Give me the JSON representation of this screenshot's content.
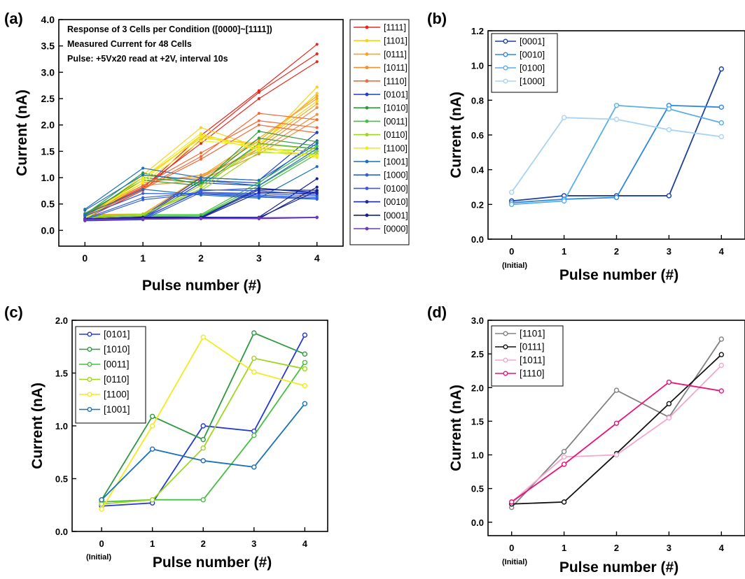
{
  "chart_data": [
    {
      "panel": "(a)",
      "type": "line",
      "xlabel": "Pulse number (#)",
      "ylabel": "Current (nA)",
      "x": [
        0,
        1,
        2,
        3,
        4
      ],
      "xticks": [
        "0",
        "1",
        "2",
        "3",
        "4"
      ],
      "ylim": [
        -0.3,
        4.0
      ],
      "yticks": [
        "0.0",
        "0.5",
        "1.0",
        "1.5",
        "2.0",
        "2.5",
        "3.0",
        "3.5",
        "4.0"
      ],
      "annotations": [
        "Response of 3 Cells per Condition ([0000]~[1111])",
        "Measured Current for 48 Cells",
        "Pulse: +5Vx20 read at +2V, interval 10s"
      ],
      "legend_position": "right, outside plot",
      "series": [
        {
          "name": "[1111]",
          "color": "#e8281e",
          "curves": [
            [
              0.25,
              0.8,
              1.8,
              2.65,
              3.53
            ],
            [
              0.22,
              0.76,
              1.72,
              2.62,
              3.35
            ],
            [
              0.28,
              0.82,
              1.65,
              2.5,
              3.2
            ]
          ]
        },
        {
          "name": "[1101]",
          "color": "#f5d21e",
          "curves": [
            [
              0.22,
              1.05,
              1.95,
              1.58,
              2.72
            ],
            [
              0.25,
              0.95,
              1.8,
              1.6,
              2.6
            ],
            [
              0.27,
              1.0,
              1.75,
              1.65,
              2.45
            ]
          ]
        },
        {
          "name": "[0111]",
          "color": "#f5a623",
          "curves": [
            [
              0.27,
              0.3,
              1.02,
              1.75,
              2.5
            ],
            [
              0.24,
              0.28,
              0.95,
              1.6,
              2.4
            ],
            [
              0.3,
              0.31,
              1.0,
              1.7,
              2.55
            ]
          ]
        },
        {
          "name": "[1011]",
          "color": "#f09030",
          "curves": [
            [
              0.3,
              0.95,
              1.0,
              1.55,
              2.33
            ],
            [
              0.26,
              0.9,
              1.05,
              1.5,
              2.2
            ],
            [
              0.28,
              0.85,
              0.95,
              1.45,
              2.1
            ]
          ]
        },
        {
          "name": "[1110]",
          "color": "#f26a3a",
          "curves": [
            [
              0.3,
              0.85,
              1.47,
              2.08,
              1.95
            ],
            [
              0.27,
              0.8,
              1.4,
              2.22,
              2.1
            ],
            [
              0.25,
              0.78,
              1.35,
              2.0,
              1.85
            ]
          ]
        },
        {
          "name": "[0101]",
          "color": "#1f3fc8",
          "curves": [
            [
              0.24,
              0.27,
              1.0,
              0.95,
              1.86
            ],
            [
              0.22,
              0.25,
              0.95,
              0.9,
              1.7
            ],
            [
              0.2,
              0.23,
              0.9,
              0.85,
              1.5
            ]
          ]
        },
        {
          "name": "[1010]",
          "color": "#2e9a3e",
          "curves": [
            [
              0.3,
              1.09,
              0.87,
              1.88,
              1.68
            ],
            [
              0.28,
              1.0,
              0.9,
              1.75,
              1.6
            ],
            [
              0.32,
              0.95,
              0.85,
              1.65,
              1.55
            ]
          ]
        },
        {
          "name": "[0011]",
          "color": "#45c040",
          "curves": [
            [
              0.28,
              0.3,
              0.3,
              0.91,
              1.6
            ],
            [
              0.25,
              0.28,
              0.28,
              0.85,
              1.5
            ],
            [
              0.27,
              0.26,
              0.27,
              0.8,
              1.45
            ]
          ]
        },
        {
          "name": "[0110]",
          "color": "#9ed61e",
          "curves": [
            [
              0.26,
              0.3,
              0.79,
              1.64,
              1.54
            ],
            [
              0.24,
              0.28,
              0.85,
              1.55,
              1.5
            ],
            [
              0.27,
              0.31,
              0.75,
              1.48,
              1.45
            ]
          ]
        },
        {
          "name": "[1100]",
          "color": "#f0ec1e",
          "curves": [
            [
              0.21,
              1.0,
              1.84,
              1.51,
              1.38
            ],
            [
              0.23,
              0.95,
              1.78,
              1.55,
              1.42
            ],
            [
              0.22,
              0.9,
              1.7,
              1.6,
              1.4
            ]
          ]
        },
        {
          "name": "[1001]",
          "color": "#1c70b8",
          "curves": [
            [
              0.3,
              0.78,
              0.67,
              0.61,
              1.21
            ],
            [
              0.4,
              1.18,
              1.0,
              0.95,
              1.65
            ],
            [
              0.38,
              1.05,
              0.95,
              0.85,
              1.55
            ]
          ]
        },
        {
          "name": "[1000]",
          "color": "#3060d8",
          "curves": [
            [
              0.27,
              0.7,
              0.69,
              0.63,
              0.59
            ],
            [
              0.22,
              0.62,
              0.72,
              0.67,
              0.62
            ],
            [
              0.2,
              0.58,
              0.7,
              0.65,
              0.6
            ]
          ]
        },
        {
          "name": "[0100]",
          "color": "#3a5ae0",
          "curves": [
            [
              0.2,
              0.22,
              0.77,
              0.75,
              0.67
            ],
            [
              0.18,
              0.2,
              0.72,
              0.7,
              0.65
            ],
            [
              0.22,
              0.24,
              0.75,
              0.8,
              0.7
            ]
          ]
        },
        {
          "name": "[0010]",
          "color": "#1a2aa0",
          "curves": [
            [
              0.21,
              0.23,
              0.24,
              0.77,
              0.76
            ],
            [
              0.19,
              0.21,
              0.23,
              0.72,
              0.7
            ],
            [
              0.22,
              0.25,
              0.25,
              0.8,
              0.72
            ]
          ]
        },
        {
          "name": "[0001]",
          "color": "#141e90",
          "curves": [
            [
              0.22,
              0.25,
              0.25,
              0.25,
              0.98
            ],
            [
              0.2,
              0.23,
              0.24,
              0.22,
              0.82
            ],
            [
              0.21,
              0.24,
              0.23,
              0.24,
              0.75
            ]
          ]
        },
        {
          "name": "[0000]",
          "color": "#6a3ab8",
          "curves": [
            [
              0.2,
              0.22,
              0.23,
              0.24,
              0.25
            ],
            [
              0.19,
              0.21,
              0.22,
              0.22,
              0.24
            ],
            [
              0.21,
              0.22,
              0.22,
              0.23,
              0.25
            ]
          ]
        }
      ]
    },
    {
      "panel": "(b)",
      "type": "line",
      "xlabel": "Pulse number (#)",
      "ylabel": "Current (nA)",
      "x": [
        0,
        1,
        2,
        3,
        4
      ],
      "xticks": [
        "0",
        "1",
        "2",
        "3",
        "4"
      ],
      "xtick_note": "(Initial)",
      "ylim": [
        0.0,
        1.2
      ],
      "yticks": [
        "0.0",
        "0.2",
        "0.4",
        "0.6",
        "0.8",
        "1.0",
        "1.2"
      ],
      "legend_position": "top-left",
      "series": [
        {
          "name": "[0001]",
          "color": "#1a3f9e",
          "values": [
            0.22,
            0.25,
            0.25,
            0.25,
            0.98
          ]
        },
        {
          "name": "[0010]",
          "color": "#2e86e0",
          "values": [
            0.21,
            0.23,
            0.24,
            0.77,
            0.76
          ]
        },
        {
          "name": "[0100]",
          "color": "#5aaeea",
          "values": [
            0.2,
            0.22,
            0.77,
            0.75,
            0.67
          ]
        },
        {
          "name": "[1000]",
          "color": "#a9d3f2",
          "values": [
            0.27,
            0.7,
            0.69,
            0.63,
            0.59
          ]
        }
      ]
    },
    {
      "panel": "(c)",
      "type": "line",
      "xlabel": "Pulse number (#)",
      "ylabel": "Current (nA)",
      "x": [
        0,
        1,
        2,
        3,
        4
      ],
      "xticks": [
        "0",
        "1",
        "2",
        "3",
        "4"
      ],
      "xtick_note": "(Initial)",
      "ylim": [
        0.0,
        2.0
      ],
      "yticks": [
        "0.0",
        "0.5",
        "1.0",
        "1.5",
        "2.0"
      ],
      "legend_position": "top-left",
      "series": [
        {
          "name": "[0101]",
          "color": "#2438d8",
          "values": [
            0.24,
            0.27,
            1.0,
            0.95,
            1.86
          ]
        },
        {
          "name": "[1010]",
          "color": "#2e9a3e",
          "values": [
            0.3,
            1.09,
            0.87,
            1.88,
            1.68
          ]
        },
        {
          "name": "[0011]",
          "color": "#45c040",
          "values": [
            0.28,
            0.3,
            0.3,
            0.91,
            1.6
          ]
        },
        {
          "name": "[0110]",
          "color": "#9ed61e",
          "values": [
            0.26,
            0.3,
            0.79,
            1.64,
            1.54
          ]
        },
        {
          "name": "[1100]",
          "color": "#f0ec1e",
          "values": [
            0.21,
            1.0,
            1.84,
            1.51,
            1.38
          ]
        },
        {
          "name": "[1001]",
          "color": "#1c70b8",
          "values": [
            0.3,
            0.78,
            0.67,
            0.61,
            1.21
          ]
        }
      ]
    },
    {
      "panel": "(d)",
      "type": "line",
      "xlabel": "Pulse number (#)",
      "ylabel": "Current (nA)",
      "x": [
        0,
        1,
        2,
        3,
        4
      ],
      "xticks": [
        "0",
        "1",
        "2",
        "3",
        "4"
      ],
      "xtick_note": "(Initial)",
      "ylim": [
        -0.2,
        3.0
      ],
      "yticks": [
        "0.0",
        "0.5",
        "1.0",
        "1.5",
        "2.0",
        "2.5",
        "3.0"
      ],
      "legend_position": "top-left",
      "series": [
        {
          "name": "[1101]",
          "color": "#808080",
          "values": [
            0.22,
            1.05,
            1.96,
            1.56,
            2.72
          ]
        },
        {
          "name": "[0111]",
          "color": "#111111",
          "values": [
            0.27,
            0.3,
            1.02,
            1.76,
            2.49
          ]
        },
        {
          "name": "[1011]",
          "color": "#f4a6cf",
          "values": [
            0.3,
            0.97,
            1.0,
            1.55,
            2.33
          ]
        },
        {
          "name": "[1110]",
          "color": "#e8127a",
          "values": [
            0.3,
            0.86,
            1.47,
            2.08,
            1.95
          ]
        }
      ]
    }
  ]
}
